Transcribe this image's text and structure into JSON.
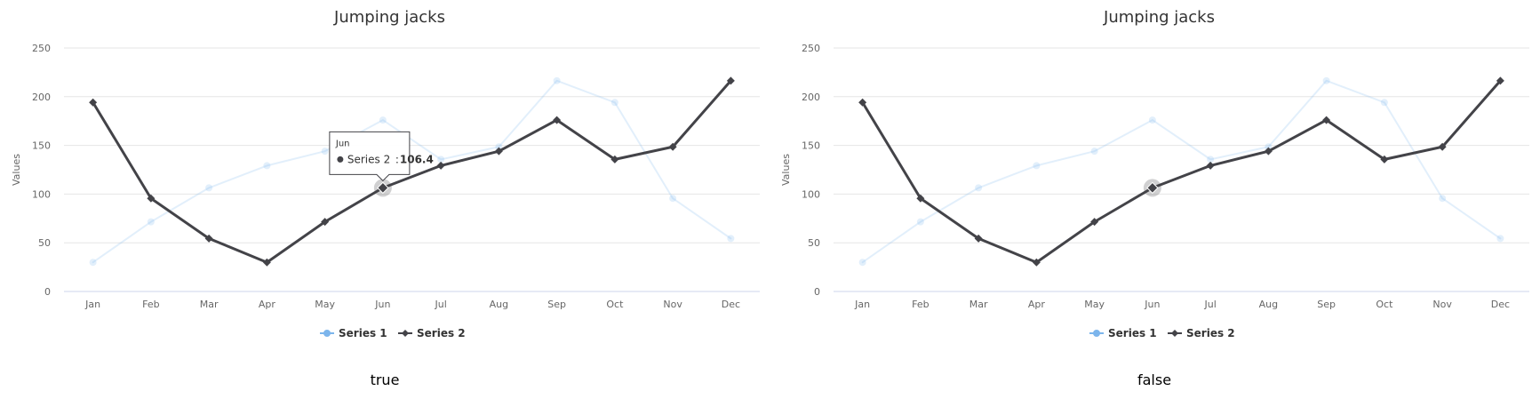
{
  "chart_data": [
    {
      "type": "line",
      "title": "Jumping jacks",
      "ylabel": "Values",
      "ylim": [
        0,
        250
      ],
      "yticks": [
        0,
        50,
        100,
        150,
        200,
        250
      ],
      "categories": [
        "Jan",
        "Feb",
        "Mar",
        "Apr",
        "May",
        "Jun",
        "Jul",
        "Aug",
        "Sep",
        "Oct",
        "Nov",
        "Dec"
      ],
      "series": [
        {
          "name": "Series 1",
          "values": [
            29.9,
            71.5,
            106.4,
            129.2,
            144.0,
            176.0,
            135.6,
            148.5,
            216.4,
            194.1,
            95.6,
            54.4
          ],
          "color": "#7cb5ec",
          "marker": "circle",
          "state": "dimmed"
        },
        {
          "name": "Series 2",
          "values": [
            194.1,
            95.6,
            54.4,
            29.9,
            71.5,
            106.4,
            129.2,
            144.0,
            176.0,
            135.6,
            148.5,
            216.4
          ],
          "color": "#434348",
          "marker": "diamond",
          "state": "hovered"
        }
      ],
      "hover_point": {
        "category": "Jun",
        "series": "Series 2",
        "value": 106.4
      },
      "tooltip": {
        "header": "Jun",
        "series_label": "Series 2",
        "value_text": "106.4",
        "visible": true
      },
      "legend": {
        "position": "bottom-center"
      },
      "grid": true,
      "caption": "true"
    },
    {
      "type": "line",
      "title": "Jumping jacks",
      "ylabel": "Values",
      "ylim": [
        0,
        250
      ],
      "yticks": [
        0,
        50,
        100,
        150,
        200,
        250
      ],
      "categories": [
        "Jan",
        "Feb",
        "Mar",
        "Apr",
        "May",
        "Jun",
        "Jul",
        "Aug",
        "Sep",
        "Oct",
        "Nov",
        "Dec"
      ],
      "series": [
        {
          "name": "Series 1",
          "values": [
            29.9,
            71.5,
            106.4,
            129.2,
            144.0,
            176.0,
            135.6,
            148.5,
            216.4,
            194.1,
            95.6,
            54.4
          ],
          "color": "#7cb5ec",
          "marker": "circle",
          "state": "dimmed"
        },
        {
          "name": "Series 2",
          "values": [
            194.1,
            95.6,
            54.4,
            29.9,
            71.5,
            106.4,
            129.2,
            144.0,
            176.0,
            135.6,
            148.5,
            216.4
          ],
          "color": "#434348",
          "marker": "diamond",
          "state": "hovered"
        }
      ],
      "hover_point": {
        "category": "Jun",
        "series": "Series 2",
        "value": 106.4
      },
      "tooltip": {
        "visible": false
      },
      "legend": {
        "position": "bottom-center"
      },
      "grid": true,
      "caption": "false"
    }
  ]
}
